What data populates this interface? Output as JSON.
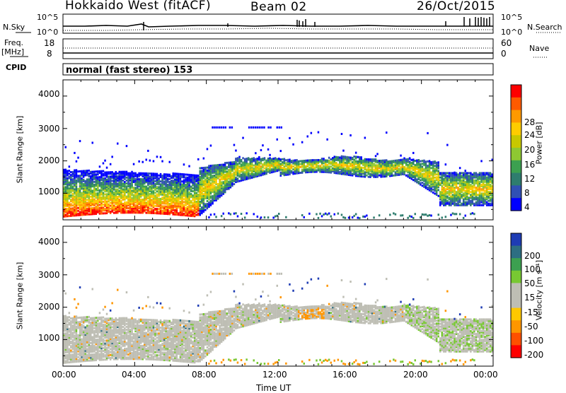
{
  "header": {
    "station": "Hokkaido West (fitACF)",
    "beam": "Beam 02",
    "date": "26/Oct/2015"
  },
  "top_panels": {
    "nsky_label": "N.Sky",
    "nsearch_label": "N.Search",
    "noise_ticks_left": [
      "10^5",
      "10^0"
    ],
    "noise_ticks_right": [
      "10^5",
      "10^0"
    ],
    "freq_label": "Freq.",
    "freq_unit": "[MHz]",
    "freq_ticks": [
      "18",
      "8"
    ],
    "nave_label": "Nave",
    "nave_ticks": [
      "60",
      "0"
    ],
    "cpid_label": "CPID",
    "cpid_value": "normal (fast stereo) 153"
  },
  "chart_data": [
    {
      "type": "heatmap",
      "name": "power",
      "ylabel": "Slant Range [km]",
      "ylim": [
        180,
        4500
      ],
      "yticks": [
        "4000",
        "3000",
        "2000",
        "1000"
      ],
      "xticks": [
        "00:00",
        "04:00",
        "08:00",
        "12:00",
        "16:00",
        "20:00",
        "00:00"
      ],
      "colorbar_label": "Power [dB]",
      "colorbar_ticks": [
        "28",
        "24",
        "20",
        "16",
        "12",
        "8",
        "4"
      ],
      "colorbar_colors": [
        "#ff0000",
        "#ff5a00",
        "#ff9900",
        "#ffcc00",
        "#c8c800",
        "#8ec832",
        "#3ca050",
        "#2e7d6e",
        "#3050b4",
        "#0000ff"
      ]
    },
    {
      "type": "heatmap",
      "name": "velocity",
      "ylabel": "Slant Range [km]",
      "ylim": [
        180,
        4500
      ],
      "yticks": [
        "4000",
        "3000",
        "2000",
        "1000"
      ],
      "xticks": [
        "00:00",
        "04:00",
        "08:00",
        "12:00",
        "16:00",
        "20:00",
        "00:00"
      ],
      "xlabel": "Time UT",
      "colorbar_label": "Velocity [m s⁻¹]",
      "colorbar_ticks": [
        "200",
        "100",
        "50",
        "15",
        "-15",
        "-50",
        "-100",
        "-200"
      ],
      "colorbar_colors": [
        "#1e3cb4",
        "#2d6e82",
        "#3ca050",
        "#78c832",
        "#bebeb4",
        "#bebeb4",
        "#ffc800",
        "#ff9600",
        "#ff5000",
        "#ff0000"
      ]
    }
  ]
}
